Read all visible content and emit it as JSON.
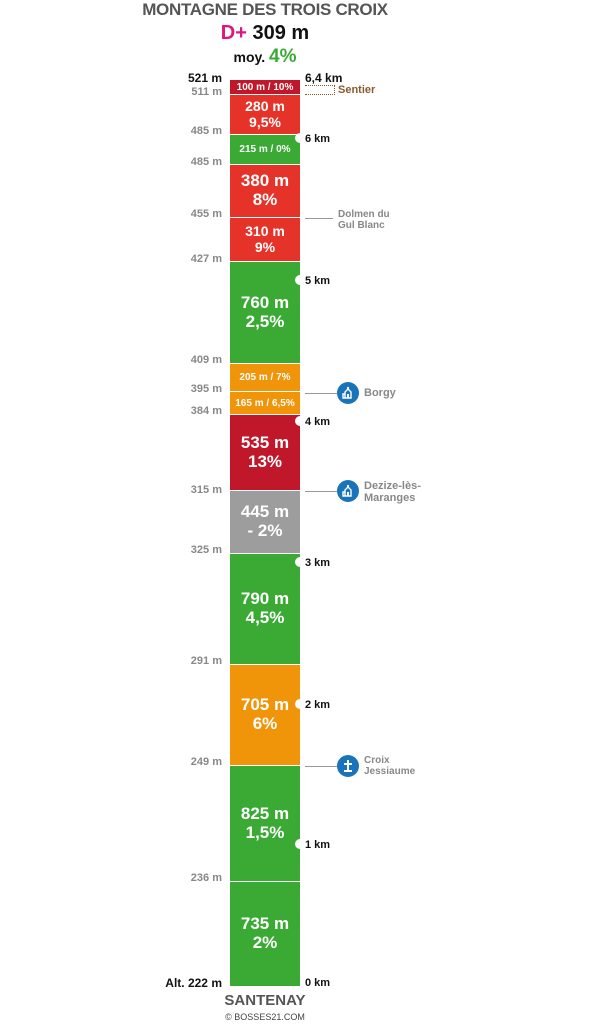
{
  "title": "MONTAGNE DES TROIS CROIX",
  "summary": {
    "dplus_label": "D+",
    "dplus_value": "309 m",
    "avg_label": "moy.",
    "avg_value": "4%"
  },
  "start": "SANTENAY",
  "credit": "© BOSSES21.COM",
  "sentier_label": "Sentier",
  "colors": {
    "green": "#3aaa35",
    "red": "#e5332a",
    "darkred": "#c0182a",
    "orange": "#f0940a",
    "gray": "#9d9d9d",
    "poi_blue": "#1a74b9"
  },
  "segments": [
    {
      "l1": "100 m / 10%",
      "l2": "",
      "color": "darkred",
      "size": "small"
    },
    {
      "l1": "280 m",
      "l2": "9,5%",
      "color": "red",
      "size": "mid"
    },
    {
      "l1": "215 m / 0%",
      "l2": "",
      "color": "green",
      "size": "small"
    },
    {
      "l1": "380 m",
      "l2": "8%",
      "color": "red",
      "size": "big"
    },
    {
      "l1": "310 m",
      "l2": "9%",
      "color": "red",
      "size": "mid"
    },
    {
      "l1": "760 m",
      "l2": "2,5%",
      "color": "green",
      "size": "big"
    },
    {
      "l1": "205 m / 7%",
      "l2": "",
      "color": "orange",
      "size": "small"
    },
    {
      "l1": "165 m / 6,5%",
      "l2": "",
      "color": "orange",
      "size": "small"
    },
    {
      "l1": "535 m",
      "l2": "13%",
      "color": "darkred",
      "size": "big"
    },
    {
      "l1": "445 m",
      "l2": "- 2%",
      "color": "gray",
      "size": "big"
    },
    {
      "l1": "790 m",
      "l2": "4,5%",
      "color": "green",
      "size": "big"
    },
    {
      "l1": "705 m",
      "l2": "6%",
      "color": "orange",
      "size": "big"
    },
    {
      "l1": "825 m",
      "l2": "1,5%",
      "color": "green",
      "size": "big"
    },
    {
      "l1": "735 m",
      "l2": "2%",
      "color": "green",
      "size": "big"
    }
  ],
  "altitudes": [
    "521 m",
    "511 m",
    "485 m",
    "485 m",
    "455 m",
    "427 m",
    "409 m",
    "395 m",
    "384 m",
    "315 m",
    "325 m",
    "291 m",
    "249 m",
    "236 m",
    "Alt. 222 m"
  ],
  "km_marks": [
    "6,4 km",
    "6 km",
    "5 km",
    "4 km",
    "3 km",
    "2 km",
    "1 km",
    "0 km"
  ],
  "pois": [
    {
      "name": "Dolmen du Gul Blanc",
      "icon": ""
    },
    {
      "name": "Borgy",
      "icon": "church-icon"
    },
    {
      "name": "Dezize-lès-Maranges",
      "icon": "church-icon"
    },
    {
      "name": "Croix Jessiaume",
      "icon": "cross-icon"
    }
  ]
}
